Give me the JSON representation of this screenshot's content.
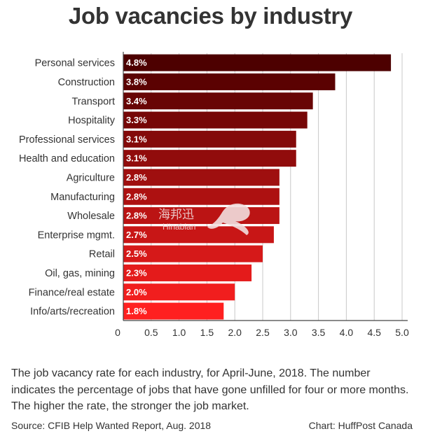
{
  "title": "Job vacancies by industry",
  "description": "The job vacancy rate for each industry, for April-June, 2018. The number indicates the percentage of jobs that have gone unfilled for four or more months. The higher the rate, the stronger the job market.",
  "source": "Source: CFIB Help Wanted Report, Aug. 2018",
  "credit": "Chart: HuffPost Canada",
  "watermark": {
    "cn": "海邦迅",
    "en": "Hinabian"
  },
  "colors": {
    "dark": "#4d0000",
    "light": "#ff2020",
    "axis": "#444444",
    "grid": "#c8c8c8"
  },
  "chart_data": {
    "type": "bar",
    "orientation": "horizontal",
    "title": "Job vacancies by industry",
    "xlabel": "",
    "ylabel": "",
    "xlim": [
      0,
      5.0
    ],
    "ticks": [
      0,
      0.5,
      1.0,
      1.5,
      2.0,
      2.5,
      3.0,
      3.5,
      4.0,
      4.5,
      5.0
    ],
    "tick_labels": [
      "0",
      "0.5",
      "1.0",
      "1.5",
      "2.0",
      "2.5",
      "3.0",
      "3.5",
      "4.0",
      "4.5",
      "5.0"
    ],
    "grid": true,
    "categories": [
      "Personal services",
      "Construction",
      "Transport",
      "Hospitality",
      "Professional services",
      "Health and education",
      "Agriculture",
      "Manufacturing",
      "Wholesale",
      "Enterprise mgmt.",
      "Retail",
      "Oil, gas, mining",
      "Finance/real estate",
      "Info/arts/recreation"
    ],
    "values": [
      4.8,
      3.8,
      3.4,
      3.3,
      3.1,
      3.1,
      2.8,
      2.8,
      2.8,
      2.7,
      2.5,
      2.3,
      2.0,
      1.8
    ],
    "data_labels": [
      "4.8%",
      "3.8%",
      "3.4%",
      "3.3%",
      "3.1%",
      "3.1%",
      "2.8%",
      "2.8%",
      "2.8%",
      "2.7%",
      "2.5%",
      "2.3%",
      "2.0%",
      "1.8%"
    ]
  }
}
